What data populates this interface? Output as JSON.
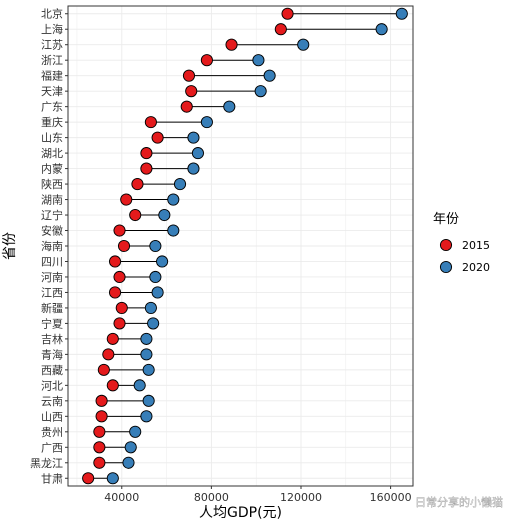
{
  "chart_data": {
    "type": "dumbbell",
    "title": "",
    "xlabel": "人均GDP(元)",
    "ylabel": "省份",
    "xlim": [
      16000,
      170000
    ],
    "xticks": [
      40000,
      80000,
      120000,
      160000
    ],
    "xtick_labels": [
      "40000",
      "80000",
      "120000",
      "160000"
    ],
    "grid": true,
    "legend_position": "right",
    "legend_title": "年份",
    "categories": [
      "北京",
      "上海",
      "江苏",
      "浙江",
      "福建",
      "天津",
      "广东",
      "重庆",
      "山东",
      "湖北",
      "内蒙",
      "陕西",
      "湖南",
      "辽宁",
      "安徽",
      "海南",
      "四川",
      "河南",
      "江西",
      "新疆",
      "宁夏",
      "吉林",
      "青海",
      "西藏",
      "河北",
      "云南",
      "山西",
      "贵州",
      "广西",
      "黑龙江",
      "甘肃"
    ],
    "series": [
      {
        "name": "2015",
        "color": "#e41a1c",
        "values": [
          114000,
          111000,
          89000,
          78000,
          70000,
          71000,
          69000,
          53000,
          56000,
          51000,
          51000,
          47000,
          42000,
          46000,
          39000,
          41000,
          37000,
          39000,
          37000,
          40000,
          39000,
          36000,
          34000,
          32000,
          36000,
          31000,
          31000,
          30000,
          30000,
          30000,
          25000
        ]
      },
      {
        "name": "2020",
        "color": "#377eb8",
        "values": [
          165000,
          156000,
          121000,
          101000,
          106000,
          102000,
          88000,
          78000,
          72000,
          74000,
          72000,
          66000,
          63000,
          59000,
          63000,
          55000,
          58000,
          55000,
          56000,
          53000,
          54000,
          51000,
          51000,
          52000,
          48000,
          52000,
          51000,
          46000,
          44000,
          43000,
          36000
        ]
      }
    ]
  },
  "watermark": "日常分享的小懒猫"
}
